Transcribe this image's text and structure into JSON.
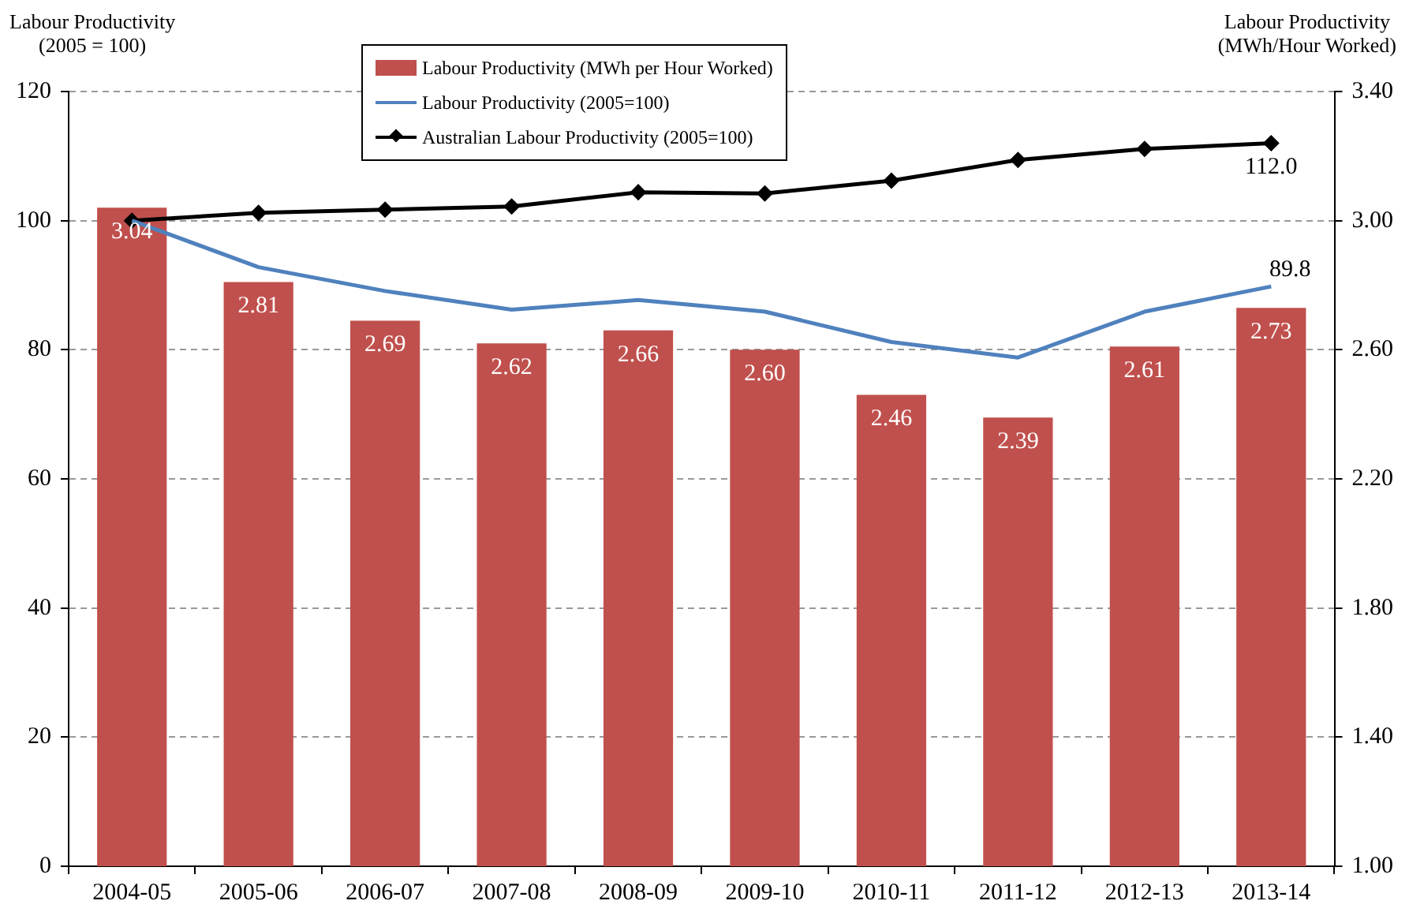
{
  "chart_data": {
    "type": "bar",
    "ylabel": "Labour Productivity\n(2005 = 100)",
    "y2label": "Labour Productivity\n(MWh/Hour Worked)",
    "categories": [
      "2004-05",
      "2005-06",
      "2006-07",
      "2007-08",
      "2008-09",
      "2009-10",
      "2010-11",
      "2011-12",
      "2012-13",
      "2013-14"
    ],
    "series": [
      {
        "name": "Labour Productivity (MWh per Hour Worked)",
        "axis": "y2",
        "color": "#c0504d",
        "values": [
          3.04,
          2.81,
          2.69,
          2.62,
          2.66,
          2.6,
          2.46,
          2.39,
          2.61,
          2.73
        ],
        "value_labels": [
          "3.04",
          "2.81",
          "2.69",
          "2.62",
          "2.66",
          "2.60",
          "2.46",
          "2.39",
          "2.61",
          "2.73"
        ]
      },
      {
        "name": "Labour Productivity (2005=100)",
        "type": "line",
        "color": "#4f81bd",
        "marker": "none",
        "values": [
          100,
          92.8,
          89.1,
          86.2,
          87.7,
          85.9,
          81.2,
          78.8,
          85.9,
          89.8
        ],
        "value_labels": [
          null,
          null,
          null,
          null,
          null,
          null,
          null,
          null,
          null,
          "89.8"
        ]
      },
      {
        "name": "Australian Labour Productivity (2005=100)",
        "type": "line",
        "color": "#000000",
        "marker": "diamond",
        "values": [
          100,
          101.2,
          101.7,
          102.2,
          104.4,
          104.2,
          106.2,
          109.4,
          111.1,
          112.0
        ],
        "value_labels": [
          null,
          null,
          null,
          null,
          null,
          null,
          null,
          null,
          null,
          "112.0"
        ]
      }
    ],
    "ylim": [
      0,
      120
    ],
    "yticks": [
      0,
      20,
      40,
      60,
      80,
      100,
      120
    ],
    "y2lim": [
      1,
      3.4
    ],
    "y2ticks": [
      {
        "value": 1,
        "label": "1.00"
      },
      {
        "value": 1.4,
        "label": "1.40"
      },
      {
        "value": 1.8,
        "label": "1.80"
      },
      {
        "value": 2.2,
        "label": "2.20"
      },
      {
        "value": 2.6,
        "label": "2.60"
      },
      {
        "value": 3.0,
        "label": "3.00"
      },
      {
        "value": 3.4,
        "label": "3.40"
      }
    ],
    "grid": "y",
    "legend": "top"
  }
}
